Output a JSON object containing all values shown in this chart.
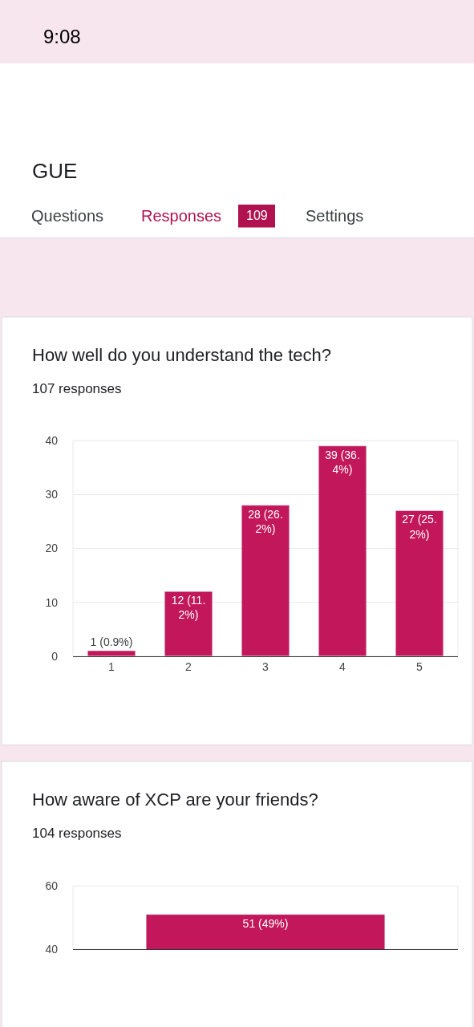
{
  "chart_data": [
    {
      "type": "bar",
      "title": "How well do you understand the tech?",
      "subtitle": "107 responses",
      "categories": [
        "1",
        "2",
        "3",
        "4",
        "5"
      ],
      "values": [
        1,
        12,
        28,
        39,
        27
      ],
      "value_labels": [
        "1 (0.9%)",
        "12 (11.2%)",
        "28 (26.2%)",
        "39 (36.4%)",
        "27 (25.2%)"
      ],
      "color": "#c2185b",
      "ylim": [
        0,
        40
      ],
      "yticks": [
        0,
        10,
        20,
        30,
        40
      ],
      "grid": "y",
      "annotations": [
        "9:08",
        "GUE",
        "Questions",
        "Responses",
        "109",
        "Settings"
      ]
    },
    {
      "type": "bar",
      "title": "How aware of XCP are your friends?",
      "subtitle": "104 responses",
      "categories": [
        null
      ],
      "values": [
        51
      ],
      "value_labels": [
        "51 (49%)"
      ],
      "color": "#c2185b",
      "ylim": [
        40,
        60
      ],
      "yticks": [
        40,
        60
      ],
      "tick_labels": "y"
    }
  ]
}
